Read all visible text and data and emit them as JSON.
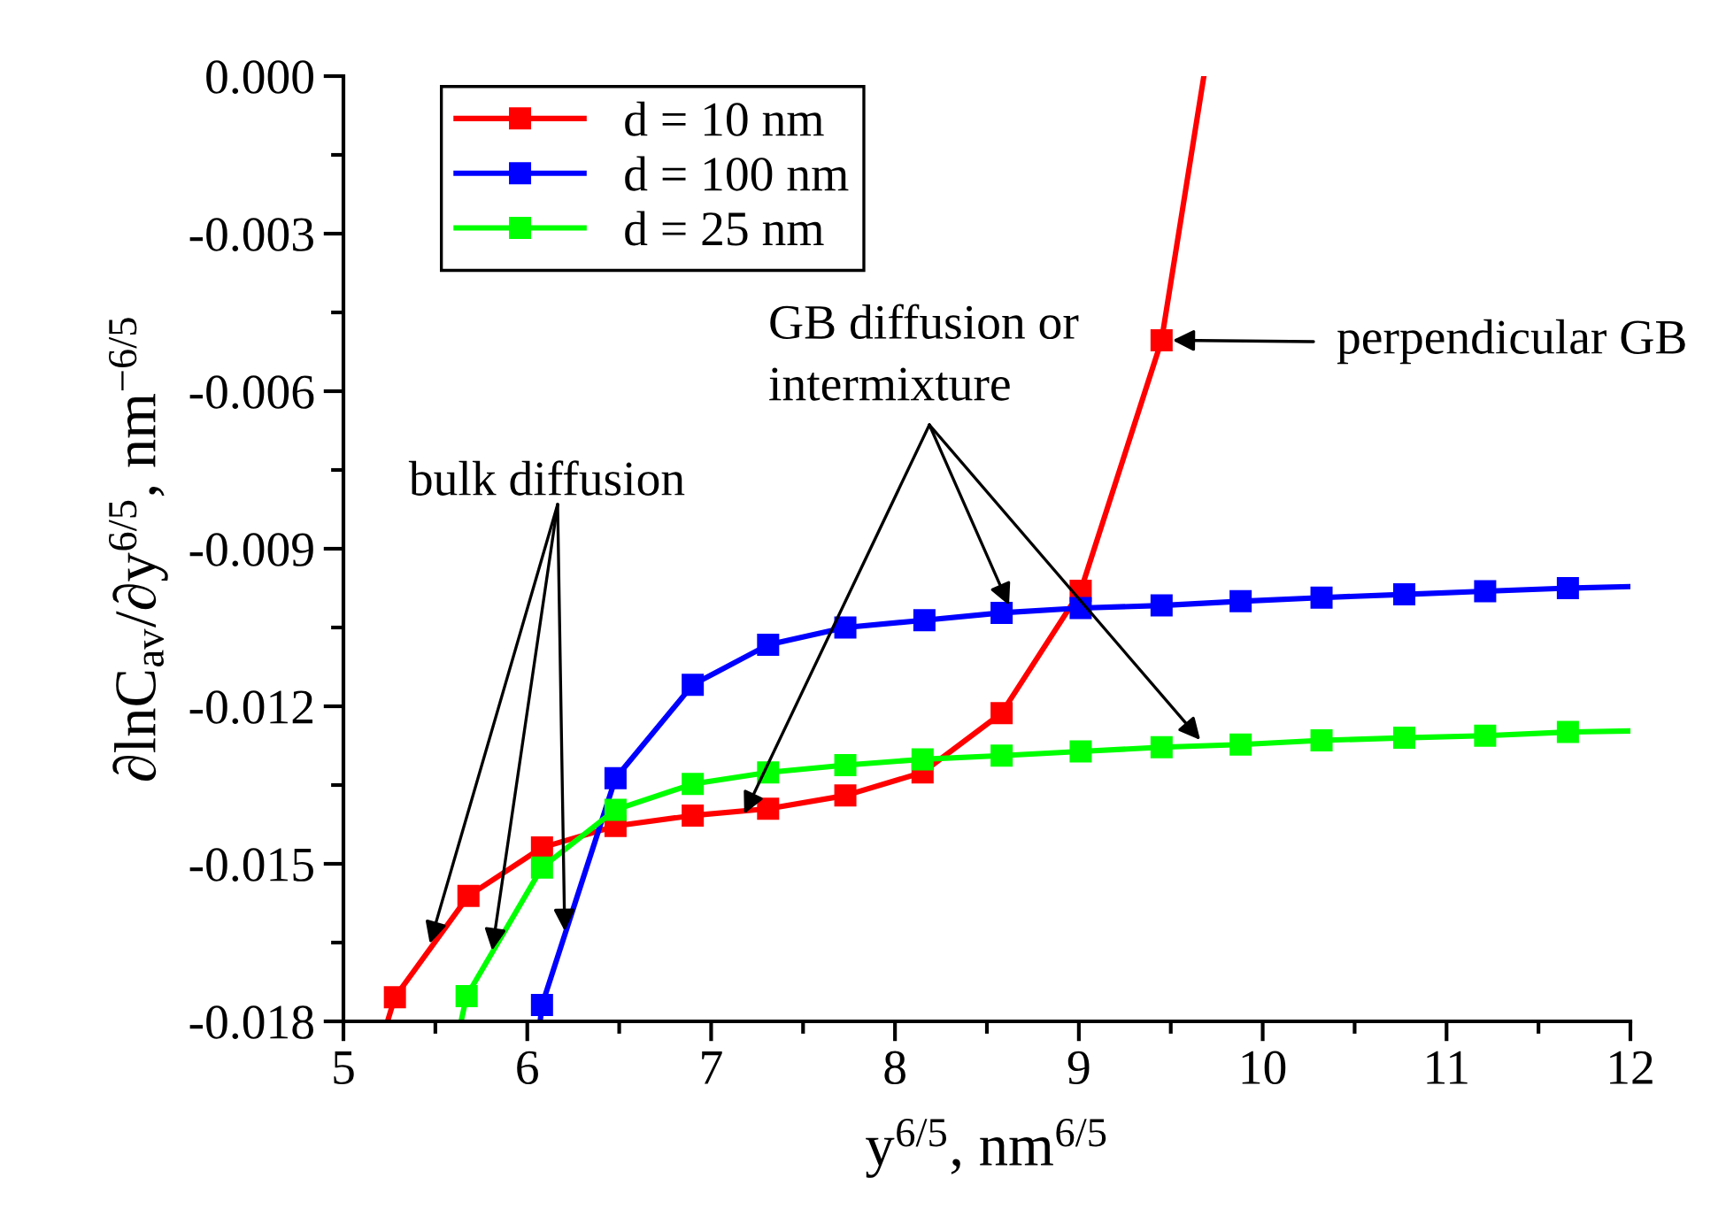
{
  "chart_data": {
    "type": "line",
    "xlabel": "y$^{6/5}$, nm$^{6/5}$",
    "ylabel": "∂lnC$_{av}$/∂y$^{6/5}$, nm$^{−6/5}$",
    "xlim": [
      5,
      12
    ],
    "xticks": [
      5,
      6,
      7,
      8,
      9,
      10,
      11,
      12
    ],
    "ylim": [
      -0.018,
      0.0
    ],
    "yticks": [
      {
        "value": -0.018,
        "label": "-0.018"
      },
      {
        "value": -0.015,
        "label": "-0.015"
      },
      {
        "value": -0.012,
        "label": "-0.012"
      },
      {
        "value": -0.009,
        "label": "-0.009"
      },
      {
        "value": -0.006,
        "label": "-0.006"
      },
      {
        "value": -0.003,
        "label": "-0.003"
      },
      {
        "value": 0.0,
        "label": "0.000"
      }
    ],
    "marker": "square",
    "line_style": "solid",
    "legend": "top left",
    "grid": false,
    "series": [
      {
        "name": "d = 10 nm",
        "color": "#ff0000",
        "x": [
          5.24,
          5.28,
          5.68,
          6.08,
          6.48,
          6.9,
          7.31,
          7.73,
          8.15,
          8.58,
          9.01,
          9.45,
          9.68
        ],
        "values": [
          -0.018,
          -0.01754,
          -0.01561,
          -0.01469,
          -0.01428,
          -0.01408,
          -0.01395,
          -0.0137,
          -0.01326,
          -0.01213,
          -0.0098,
          -0.00503,
          0.0
        ]
      },
      {
        "name": "d = 100 nm",
        "color": "#0000ff",
        "x": [
          6.07,
          6.08,
          6.48,
          6.9,
          7.31,
          7.73,
          8.16,
          8.58,
          9.01,
          9.45,
          9.88,
          10.32,
          10.77,
          11.21,
          11.66,
          12.0
        ],
        "values": [
          -0.018,
          -0.01769,
          -0.01337,
          -0.01159,
          -0.01083,
          -0.0105,
          -0.01036,
          -0.01022,
          -0.01013,
          -0.01008,
          -0.01,
          -0.00993,
          -0.00987,
          -0.00981,
          -0.00975,
          -0.00972
        ]
      },
      {
        "name": "d = 25 nm",
        "color": "#00ff00",
        "x": [
          5.64,
          5.67,
          6.08,
          6.48,
          6.9,
          7.31,
          7.73,
          8.15,
          8.58,
          9.01,
          9.45,
          9.88,
          10.32,
          10.77,
          11.21,
          11.66,
          12.0
        ],
        "values": [
          -0.018,
          -0.01752,
          -0.01507,
          -0.01397,
          -0.01348,
          -0.01326,
          -0.01312,
          -0.01301,
          -0.01294,
          -0.01286,
          -0.01278,
          -0.01273,
          -0.01265,
          -0.0126,
          -0.01256,
          -0.01249,
          -0.01247
        ]
      }
    ],
    "annotations": [
      {
        "text": "bulk diffusion",
        "x": 5.47,
        "y": -0.01652
      },
      {
        "text": "GB diffusion or\nintermixture",
        "x": 7.18,
        "y": -0.01405
      },
      {
        "text": "perpendicular GB",
        "x": 9.51,
        "y": -0.00503
      }
    ]
  }
}
